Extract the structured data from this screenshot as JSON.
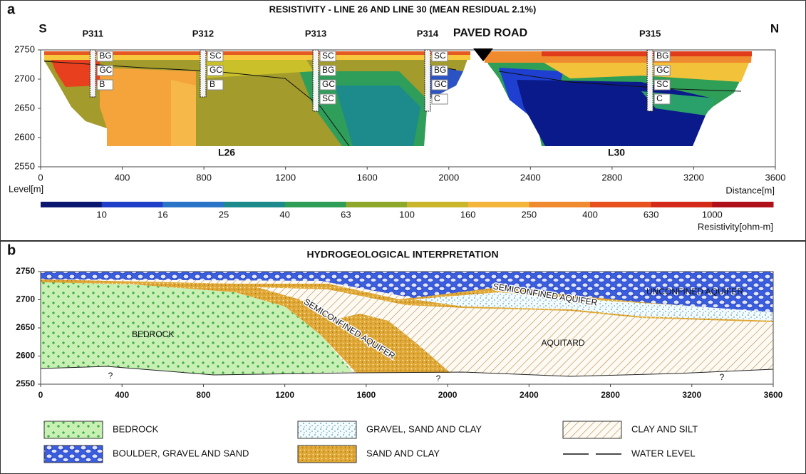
{
  "panel_a": {
    "letter": "a",
    "title": "RESISTIVITY - LINE 26 AND LINE 30 (MEAN RESIDUAL 2.1%)",
    "left_label": "S",
    "right_label": "N",
    "y_axis_label": "Level[m]",
    "x_axis_label": "Distance[m]",
    "xlim": [
      0,
      3600
    ],
    "ylim": [
      2550,
      2750
    ],
    "xticks": [
      0,
      400,
      800,
      1200,
      1600,
      2000,
      2400,
      2800,
      3200,
      3600
    ],
    "yticks": [
      2550,
      2600,
      2650,
      2700,
      2750
    ],
    "line_labels": [
      "L26",
      "L30"
    ],
    "road_label": "PAVED ROAD",
    "boreholes": [
      {
        "name": "P311",
        "distance": 256,
        "layers": [
          "BG",
          "GC",
          "B"
        ]
      },
      {
        "name": "P312",
        "distance": 796,
        "layers": [
          "SC",
          "GC",
          "B"
        ]
      },
      {
        "name": "P313",
        "distance": 1348,
        "layers": [
          "SC",
          "BG",
          "GC",
          "SC"
        ]
      },
      {
        "name": "P314",
        "distance": 1896,
        "layers": [
          "SC",
          "BG",
          "GC",
          "C"
        ]
      },
      {
        "name": "P315",
        "distance": 2986,
        "layers": [
          "BG",
          "GC",
          "SC",
          "C"
        ]
      }
    ],
    "colorbar": {
      "ticks": [
        10,
        16,
        25,
        40,
        63,
        100,
        160,
        250,
        400,
        630,
        1000
      ],
      "colors": [
        "#0a1670",
        "#1f3fc8",
        "#2a74c8",
        "#1d8a8c",
        "#2e9e56",
        "#8ea82c",
        "#c9b62a",
        "#f4b63a",
        "#f08a2e",
        "#e8501e",
        "#d42a1a",
        "#b0101a"
      ],
      "label": "Resistivity[ohm-m]"
    }
  },
  "panel_b": {
    "letter": "b",
    "title": "HYDROGEOLOGICAL INTERPRETATION",
    "xlim": [
      0,
      3600
    ],
    "ylim": [
      2550,
      2750
    ],
    "xticks": [
      0,
      400,
      800,
      1200,
      1600,
      2000,
      2400,
      2800,
      3200,
      3600
    ],
    "yticks": [
      2550,
      2600,
      2650,
      2700,
      2750
    ],
    "region_labels": [
      "BEDROCK",
      "SEMICONFINED AQUIFER",
      "SEMICONFINED AQUIFER",
      "UNCONFINED AQUIFER",
      "AQUITARD"
    ],
    "question_marks": [
      "?",
      "?",
      "?"
    ],
    "legend": [
      "BEDROCK",
      "GRAVEL, SAND AND CLAY",
      "CLAY AND SILT",
      "BOULDER,  GRAVEL AND SAND",
      "SAND AND CLAY",
      "WATER LEVEL"
    ]
  }
}
